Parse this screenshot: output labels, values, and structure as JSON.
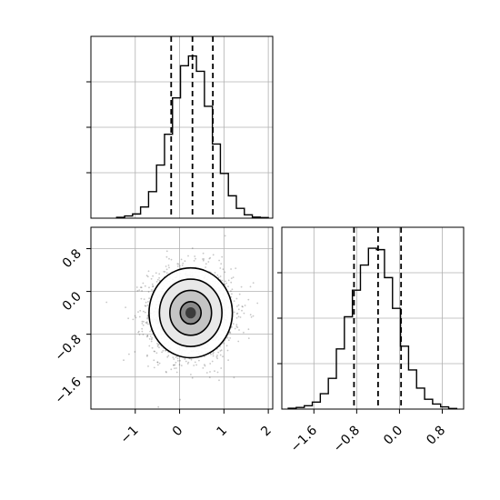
{
  "chart_data": [
    {
      "type": "histogram",
      "panel": "top-left",
      "xlim": [
        -2.0,
        2.1
      ],
      "y_tick_labels_shown": false,
      "bins": [
        -1.42,
        -1.24,
        -1.06,
        -0.88,
        -0.7,
        -0.52,
        -0.34,
        -0.16,
        0.02,
        0.2,
        0.38,
        0.56,
        0.74,
        0.92,
        1.1,
        1.28,
        1.46,
        1.64,
        1.82,
        2.0
      ],
      "counts": [
        3,
        8,
        15,
        40,
        95,
        190,
        300,
        430,
        545,
        580,
        525,
        400,
        265,
        160,
        80,
        35,
        12,
        4,
        2
      ],
      "ylim": [
        0,
        650
      ],
      "quantile_lines": [
        -0.19,
        0.29,
        0.75
      ],
      "grid": true
    },
    {
      "type": "scatter-density-contour",
      "panel": "bottom-left",
      "xlim": [
        -2.0,
        2.1
      ],
      "ylim": [
        -2.2,
        1.2
      ],
      "x_ticks": [
        -1,
        0,
        1,
        2
      ],
      "x_tick_labels": [
        "−1",
        "0",
        "1",
        "2"
      ],
      "y_ticks": [
        0.8,
        0.0,
        -0.8,
        -1.6
      ],
      "y_tick_labels": [
        "0.8",
        "0.0",
        "−0.8",
        "−1.6"
      ],
      "center": [
        0.25,
        -0.4
      ],
      "spread": [
        0.47,
        0.42
      ],
      "contour_levels_sigma": [
        0.5,
        1.0,
        1.5,
        2.0
      ],
      "grid": true
    },
    {
      "type": "histogram",
      "panel": "bottom-right",
      "xlim": [
        -2.2,
        1.2
      ],
      "x_ticks": [
        -1.6,
        -0.8,
        0.0,
        0.8
      ],
      "x_tick_labels": [
        "−1.6",
        "−0.8",
        "0.0",
        "0.8"
      ],
      "y_tick_labels_shown": false,
      "bins": [
        -2.08,
        -1.93,
        -1.78,
        -1.63,
        -1.48,
        -1.33,
        -1.18,
        -1.03,
        -0.88,
        -0.73,
        -0.58,
        -0.43,
        -0.28,
        -0.13,
        0.02,
        0.17,
        0.32,
        0.47,
        0.62,
        0.77,
        0.92,
        1.07
      ],
      "counts": [
        3,
        6,
        12,
        25,
        55,
        110,
        215,
        330,
        425,
        515,
        575,
        570,
        470,
        360,
        225,
        140,
        75,
        35,
        18,
        8,
        2
      ],
      "ylim": [
        0,
        650
      ],
      "quantile_lines": [
        -0.85,
        -0.4,
        0.03
      ],
      "grid": true
    }
  ]
}
